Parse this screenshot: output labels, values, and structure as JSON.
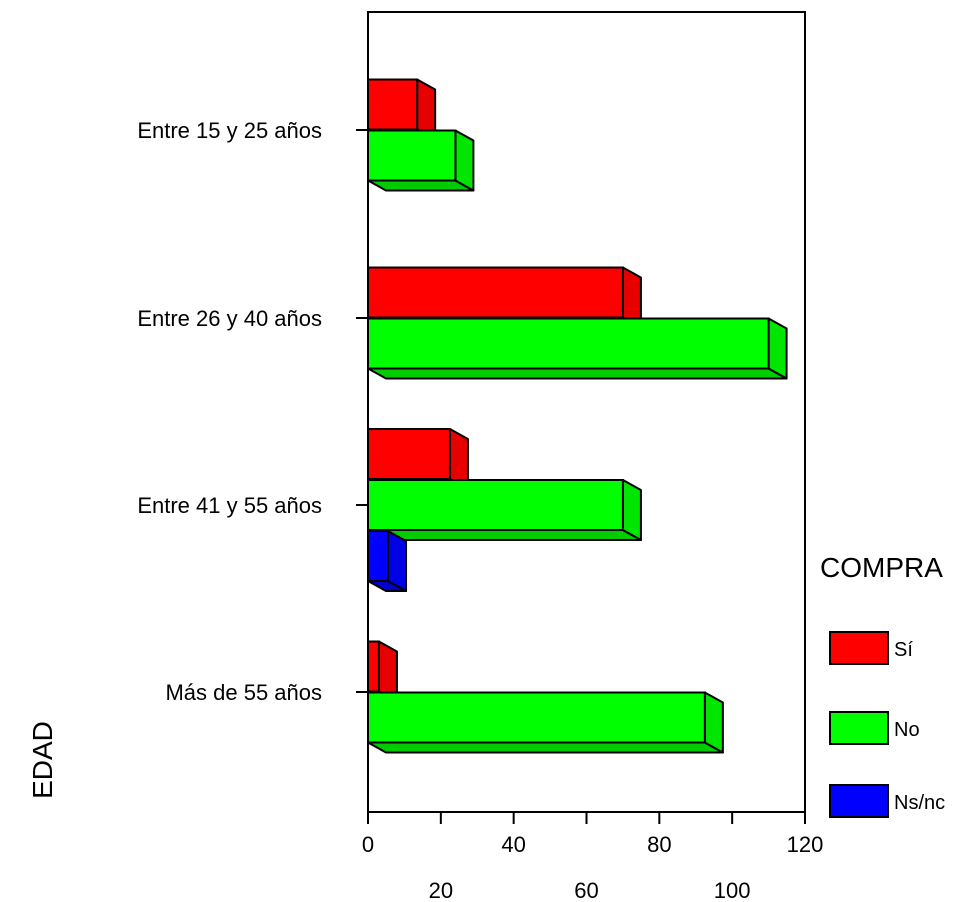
{
  "chart_data": {
    "type": "bar",
    "orientation": "horizontal",
    "style": "3d",
    "title": "",
    "xlabel": "",
    "ylabel": "EDAD",
    "categories": [
      "Entre 15 y 25 años",
      "Entre 26 y 40 años",
      "Entre 41 y 55 años",
      "Más de 55 años"
    ],
    "series": [
      {
        "name": "Sí",
        "color": "#ff0000",
        "values": [
          13.5,
          70,
          22.5,
          3
        ]
      },
      {
        "name": "No",
        "color": "#00ff00",
        "values": [
          24,
          110,
          70,
          92.5
        ]
      },
      {
        "name": "Ns/nc",
        "color": "#0000ff",
        "values": [
          0,
          0,
          5.5,
          0
        ]
      }
    ],
    "xlim": [
      0,
      120
    ],
    "xticks_top_row": [
      "0",
      "40",
      "80",
      "120"
    ],
    "xticks_bottom_row": [
      "20",
      "60",
      "100"
    ],
    "xticks_top_values": [
      0,
      40,
      80,
      120
    ],
    "xticks_bottom_values": [
      20,
      60,
      100
    ],
    "grid": false,
    "legend": {
      "title": "COMPRA",
      "placement": "right"
    }
  }
}
